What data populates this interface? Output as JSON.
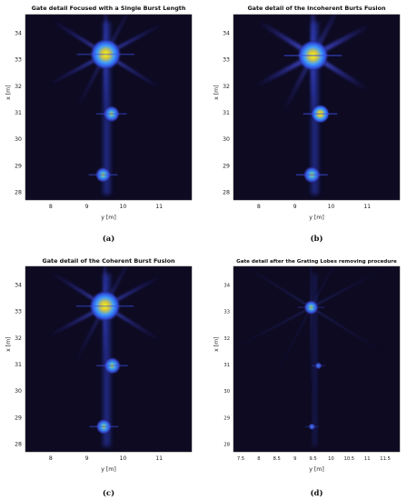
{
  "chart_data": [
    {
      "type": "heatmap",
      "title": "Gate detail Focused with a Single Burst Length",
      "caption": "(a)",
      "xlabel": "y [m]",
      "ylabel": "x [m]",
      "xticks": [
        "8",
        "9",
        "10",
        "11"
      ],
      "yticks": [
        "28",
        "29",
        "30",
        "31",
        "32",
        "33",
        "34"
      ],
      "xlim": [
        7.3,
        11.9
      ],
      "ylim": [
        27.7,
        34.7
      ],
      "colormap": "parula",
      "hotspots": [
        {
          "y": 9.52,
          "x": 33.2,
          "intensity": 1.0
        },
        {
          "y": 9.68,
          "x": 30.95,
          "intensity": 0.7
        },
        {
          "y": 9.45,
          "x": 28.65,
          "intensity": 0.6
        }
      ]
    },
    {
      "type": "heatmap",
      "title": "Gate detail of the Incoherent Burts Fusion",
      "caption": "(b)",
      "xlabel": "y [m]",
      "ylabel": "x [m]",
      "xticks": [
        "8",
        "9",
        "10",
        "11"
      ],
      "yticks": [
        "28",
        "29",
        "30",
        "31",
        "32",
        "33",
        "34"
      ],
      "xlim": [
        7.3,
        11.9
      ],
      "ylim": [
        27.7,
        34.7
      ],
      "colormap": "parula",
      "hotspots": [
        {
          "y": 9.5,
          "x": 33.15,
          "intensity": 1.0
        },
        {
          "y": 9.7,
          "x": 30.95,
          "intensity": 0.9
        },
        {
          "y": 9.47,
          "x": 28.65,
          "intensity": 0.75
        }
      ]
    },
    {
      "type": "heatmap",
      "title": "Gate detail of the Coherent Burst Fusion",
      "caption": "(c)",
      "xlabel": "y [m]",
      "ylabel": "x [m]",
      "xticks": [
        "8",
        "9",
        "10",
        "11"
      ],
      "yticks": [
        "28",
        "29",
        "30",
        "31",
        "32",
        "33",
        "34"
      ],
      "xlim": [
        7.3,
        11.9
      ],
      "ylim": [
        27.7,
        34.7
      ],
      "colormap": "parula",
      "hotspots": [
        {
          "y": 9.5,
          "x": 33.2,
          "intensity": 1.0
        },
        {
          "y": 9.7,
          "x": 30.95,
          "intensity": 0.75
        },
        {
          "y": 9.47,
          "x": 28.65,
          "intensity": 0.6
        }
      ]
    },
    {
      "type": "heatmap",
      "title": "Gate detail after the Grating Lobes removing procedure",
      "caption": "(d)",
      "xlabel": "y [m]",
      "ylabel": "x [m]",
      "xticks": [
        "7.5",
        "8",
        "8.5",
        "9",
        "9.5",
        "10",
        "10.5",
        "11",
        "11.5"
      ],
      "yticks": [
        "28",
        "29",
        "30",
        "31",
        "32",
        "33",
        "34"
      ],
      "xlim": [
        7.3,
        11.9
      ],
      "ylim": [
        27.7,
        34.7
      ],
      "colormap": "parula",
      "hotspots": [
        {
          "y": 9.45,
          "x": 33.15,
          "intensity": 0.55
        },
        {
          "y": 9.65,
          "x": 30.95,
          "intensity": 0.25
        },
        {
          "y": 9.47,
          "x": 28.65,
          "intensity": 0.22
        }
      ]
    }
  ]
}
